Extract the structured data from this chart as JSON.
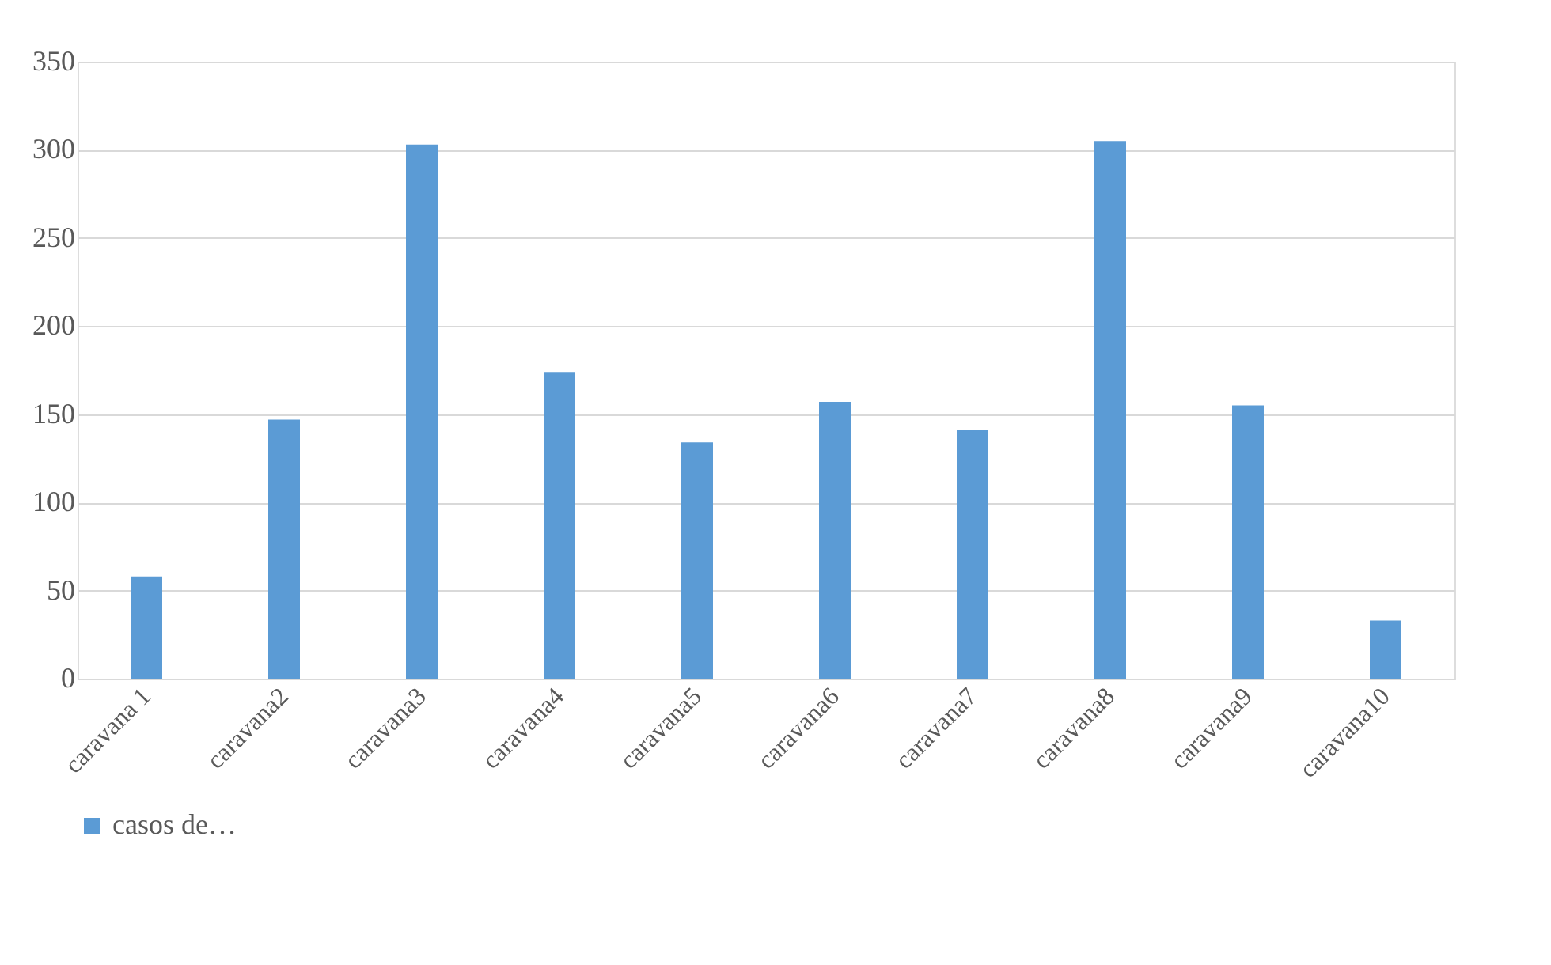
{
  "chart_data": {
    "type": "bar",
    "categories": [
      "caravana 1",
      "caravana2",
      "caravana3",
      "caravana4",
      "caravana5",
      "caravana6",
      "caravana7",
      "caravana8",
      "caravana9",
      "caravana10"
    ],
    "series": [
      {
        "name": "casos de…",
        "color": "#5b9bd5",
        "values": [
          58,
          147,
          303,
          174,
          134,
          157,
          141,
          305,
          155,
          33
        ]
      }
    ],
    "ylim": [
      0,
      350
    ],
    "yticks": [
      0,
      50,
      100,
      150,
      200,
      250,
      300,
      350
    ],
    "grid": "y",
    "legend": "bottom"
  }
}
